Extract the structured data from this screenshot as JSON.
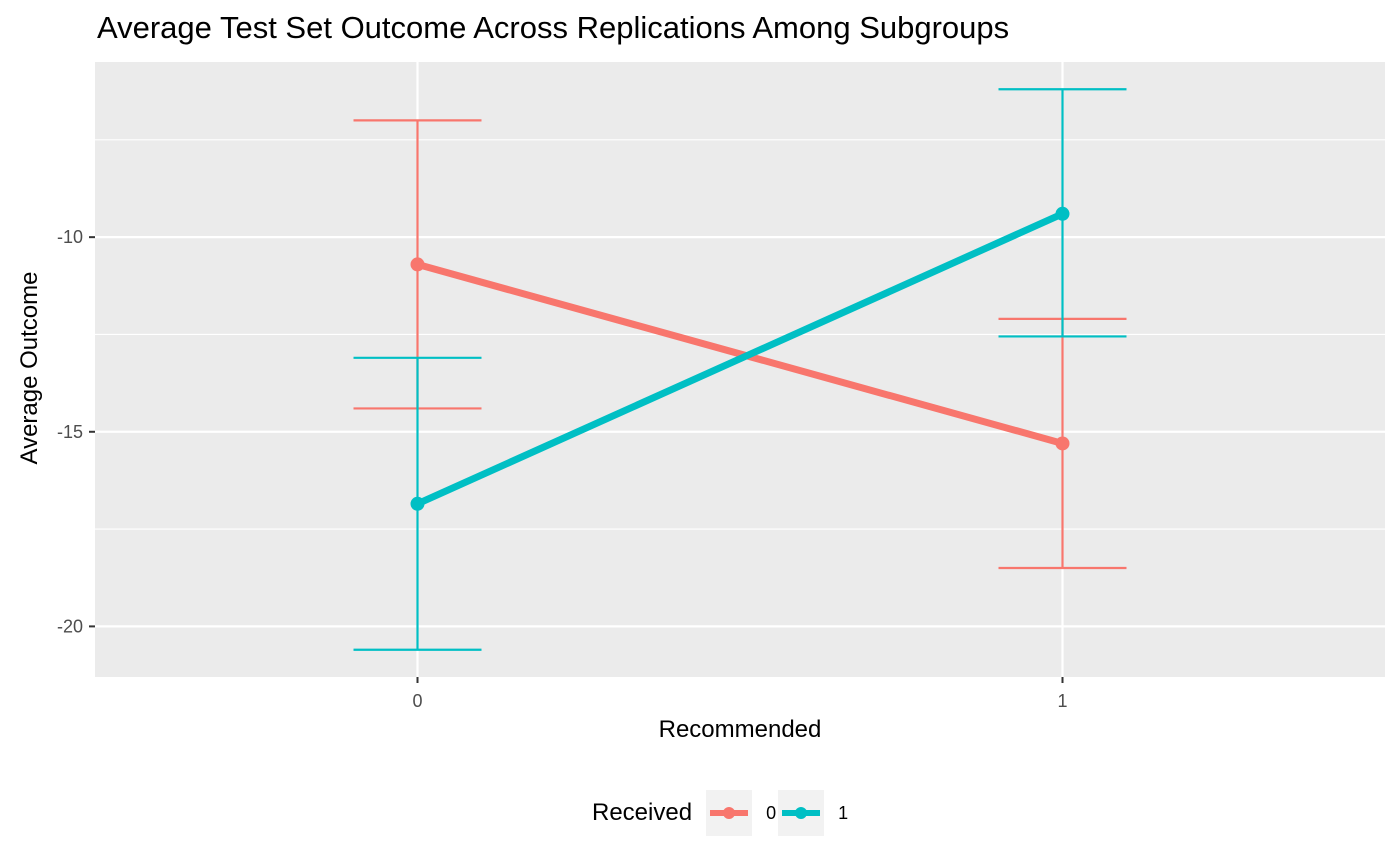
{
  "chart_data": {
    "type": "line",
    "title": "Average Test Set Outcome Across Replications Among Subgroups",
    "xlabel": "Recommended",
    "ylabel": "Average Outcome",
    "categories": [
      "0",
      "1"
    ],
    "x_ticks": [
      "0",
      "1"
    ],
    "y_ticks": [
      "-10",
      "-15",
      "-20"
    ],
    "y_tick_values": [
      -10,
      -15,
      -20
    ],
    "ylim": [
      -21.3,
      -5.5
    ],
    "grid": true,
    "legend": {
      "title": "Received",
      "placement": "bottom"
    },
    "series": [
      {
        "name": "0",
        "color": "#F8766D",
        "values": [
          -10.7,
          -15.3
        ],
        "error_lower": [
          -14.4,
          -18.5
        ],
        "error_upper": [
          -7.0,
          -12.1
        ]
      },
      {
        "name": "1",
        "color": "#00BFC4",
        "values": [
          -16.85,
          -9.4
        ],
        "error_lower": [
          -20.6,
          -12.55
        ],
        "error_upper": [
          -13.1,
          -6.2
        ]
      }
    ]
  }
}
